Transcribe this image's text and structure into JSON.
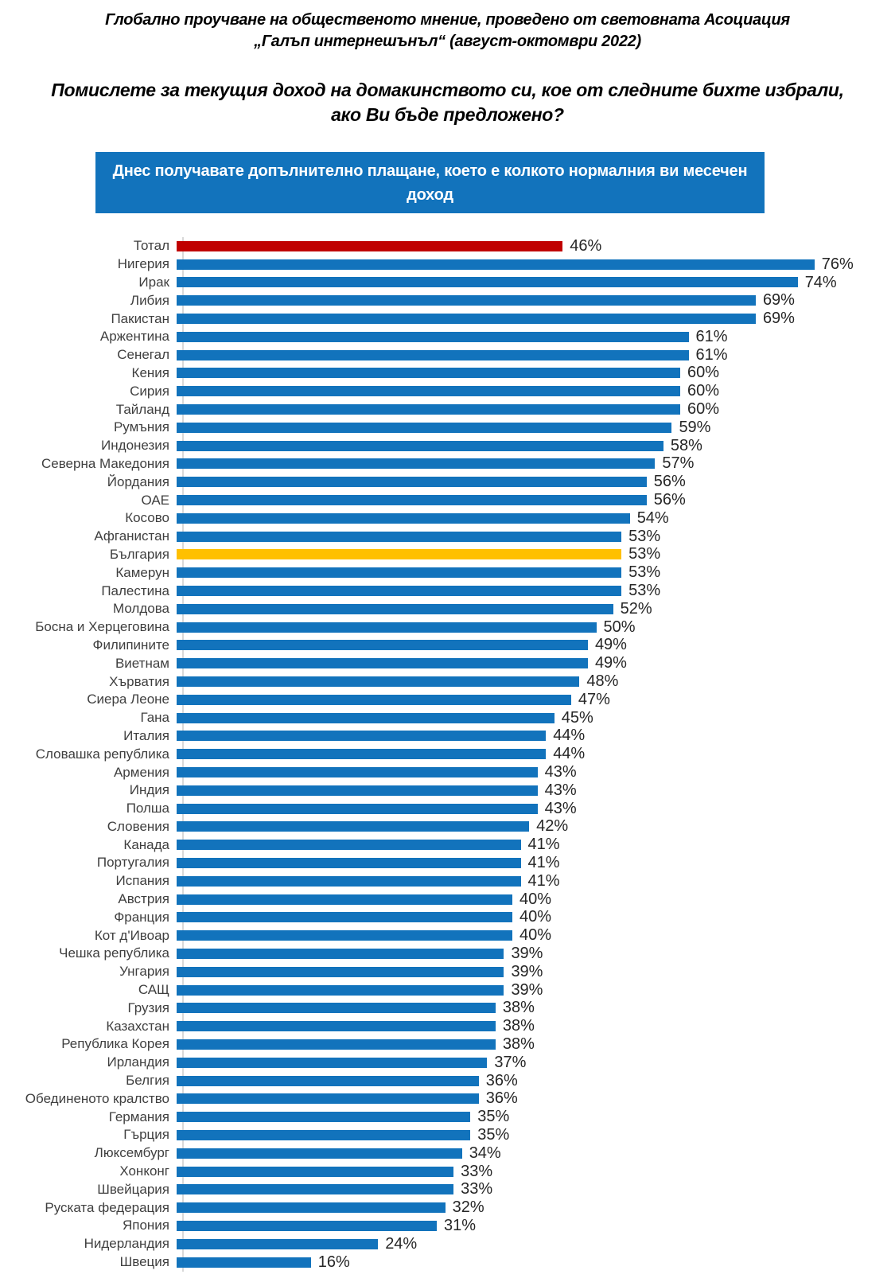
{
  "header": {
    "source_line": "Глобално проучване на общественото мнение, проведено от световната Асоциация „Галъп интернешънъл“ (август-октомври 2022)",
    "question": "Помислете за текущия доход на домакинството си, кое от следните бихте избрали, ако Ви бъде предложено?",
    "banner": "Днес получавате допълнително плащане, което е колкото нормалния ви месечен доход"
  },
  "colors": {
    "banner_background": "#1273bc",
    "bar_default": "#1273bc",
    "bar_total": "#c00000",
    "bar_bulgaria": "#ffc000",
    "axis_line": "#d9d9d9",
    "category_label": "#3f3f3f",
    "value_label": "#262626"
  },
  "chart_data": {
    "type": "bar",
    "orientation": "horizontal",
    "unit": "%",
    "xlim": [
      0,
      80
    ],
    "grid": false,
    "legend": "none",
    "title": "Днес получавате допълнително плащане, което е колкото нормалния ви месечен доход",
    "xlabel": "",
    "ylabel": "",
    "bar_color_default": "#1273bc",
    "special_bars": [
      {
        "label": "Тотал",
        "color": "#c00000"
      },
      {
        "label": "България",
        "color": "#ffc000"
      }
    ],
    "categories": [
      "Тотал",
      "Нигерия",
      "Ирак",
      "Либия",
      "Пакистан",
      "Аржентина",
      "Сенегал",
      "Кения",
      "Сирия",
      "Тайланд",
      "Румъния",
      "Индонезия",
      "Северна Македония",
      "Йордания",
      "ОАЕ",
      "Косово",
      "Афганистан",
      "България",
      "Камерун",
      "Палестина",
      "Молдова",
      "Босна и Херцеговина",
      "Филипините",
      "Виетнам",
      "Хърватия",
      "Сиера Леоне",
      "Гана",
      "Италия",
      "Словашка република",
      "Армения",
      "Индия",
      "Полша",
      "Словения",
      "Канада",
      "Португалия",
      "Испания",
      "Австрия",
      "Франция",
      "Кот д'Ивоар",
      "Чешка република",
      "Унгария",
      "САЩ",
      "Грузия",
      "Казахстан",
      "Република Корея",
      "Ирландия",
      "Белгия",
      "Обединеното кралство",
      "Германия",
      "Гърция",
      "Люксембург",
      "Хонконг",
      "Швейцария",
      "Руската федерация",
      "Япония",
      "Нидерландия",
      "Швеция"
    ],
    "values": [
      46,
      76,
      74,
      69,
      69,
      61,
      61,
      60,
      60,
      60,
      59,
      58,
      57,
      56,
      56,
      54,
      53,
      53,
      53,
      53,
      52,
      50,
      49,
      49,
      48,
      47,
      45,
      44,
      44,
      43,
      43,
      43,
      42,
      41,
      41,
      41,
      40,
      40,
      40,
      39,
      39,
      39,
      38,
      38,
      38,
      37,
      36,
      36,
      35,
      35,
      34,
      33,
      33,
      32,
      31,
      24,
      16
    ]
  }
}
